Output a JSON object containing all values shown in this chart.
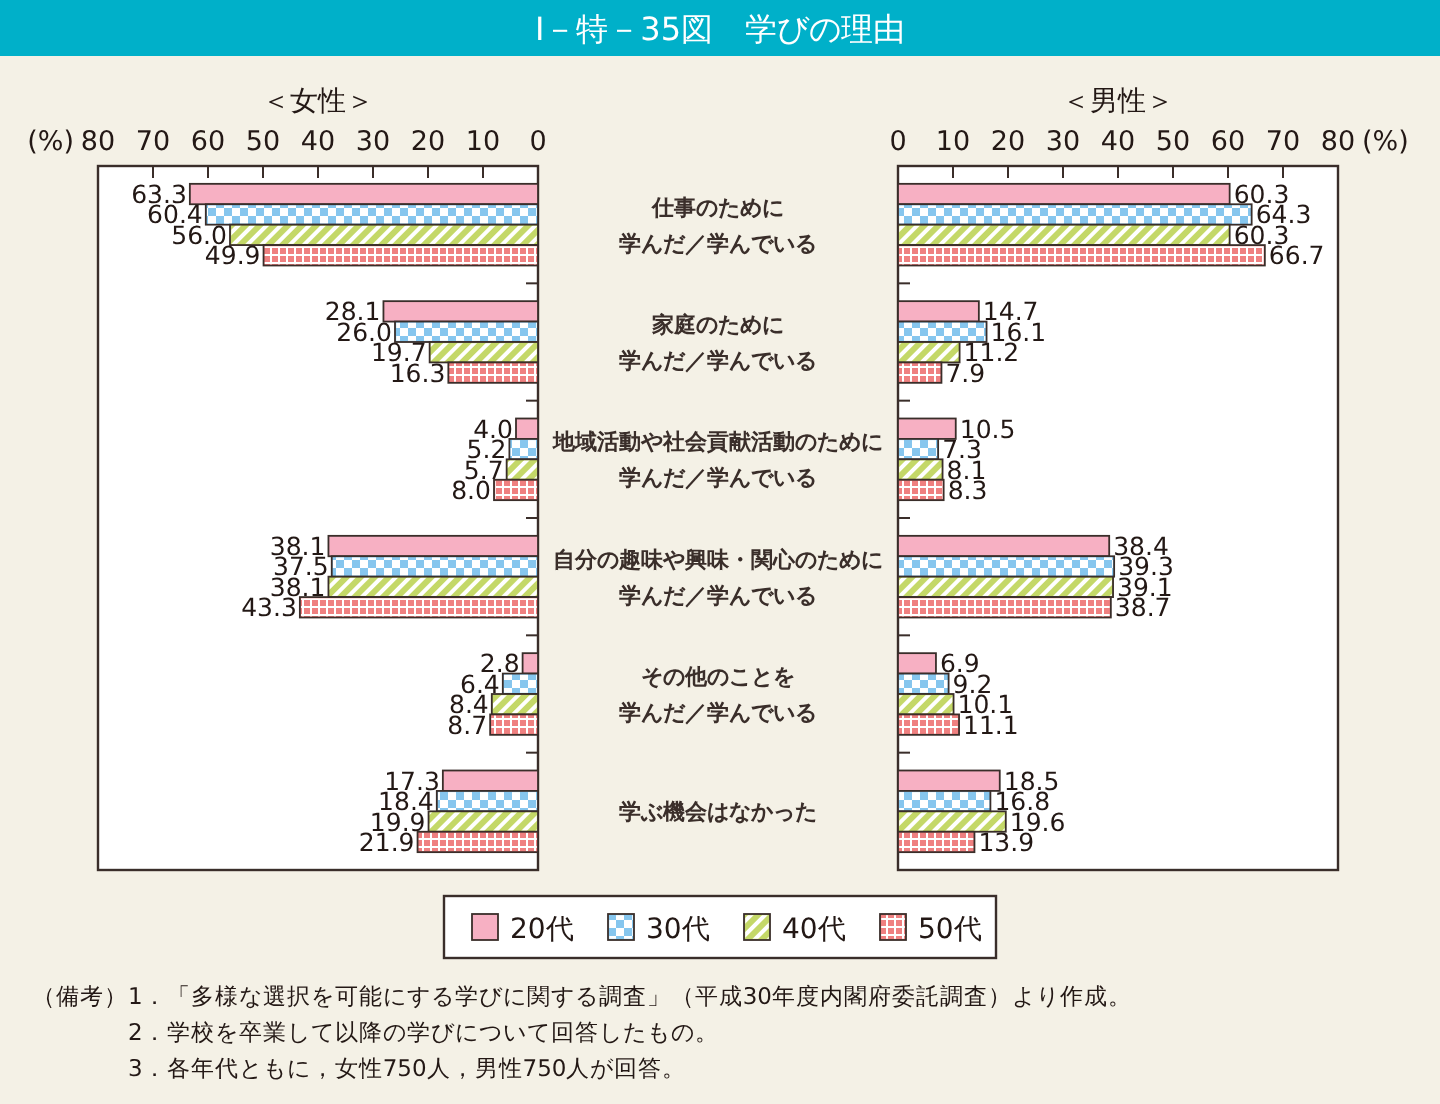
{
  "chart_data": [
    {
      "type": "bar",
      "orientation": "horizontal",
      "title": "Ⅰ－特－35図　学びの理由",
      "subtitle": "＜女性＞",
      "xlabel": "(%)",
      "categories": [
        "仕事のために学んだ／学んでいる",
        "家庭のために学んだ／学んでいる",
        "地域活動や社会貢献活動のために学んだ／学んでいる",
        "自分の趣味や興味・関心のために学んだ／学んでいる",
        "その他のことを学んだ／学んでいる",
        "学ぶ機会はなかった"
      ],
      "series": [
        {
          "name": "20代",
          "color": "#f7b0c3",
          "values": [
            63.3,
            28.1,
            4.0,
            38.1,
            2.8,
            17.3
          ],
          "value_labels": [
            "63.3",
            "28.1",
            "4.0",
            "38.1",
            "2.8",
            "17.3"
          ]
        },
        {
          "name": "30代",
          "color": "#86c6ee",
          "values": [
            60.4,
            26.0,
            5.2,
            37.5,
            6.4,
            18.4
          ],
          "value_labels": [
            "60.4",
            "26.0",
            "5.2",
            "37.5",
            "6.4",
            "18.4"
          ]
        },
        {
          "name": "40代",
          "color": "#c4d868",
          "values": [
            56.0,
            19.7,
            5.7,
            38.1,
            8.4,
            19.9
          ],
          "value_labels": [
            "56.0",
            "19.7",
            "5.7",
            "38.1",
            "8.4",
            "19.9"
          ]
        },
        {
          "name": "50代",
          "color": "#ef8080",
          "values": [
            49.9,
            16.3,
            8.0,
            43.3,
            8.7,
            21.9
          ],
          "value_labels": [
            "49.9",
            "16.3",
            "8.0",
            "43.3",
            "8.7",
            "21.9"
          ]
        }
      ],
      "xlim": [
        80,
        0
      ],
      "xticks": [
        80,
        70,
        60,
        50,
        40,
        30,
        20,
        10,
        0
      ],
      "legend": "bottom",
      "annotations": [
        "（備考）",
        "1．「多様な選択を可能にする学びに関する調査」（平成30年度内閣府委託調査）より作成。",
        "2．学校を卒業して以降の学びについて回答したもの。",
        "3．各年代ともに，女性750人，男性750人が回答。"
      ]
    },
    {
      "type": "bar",
      "orientation": "horizontal",
      "subtitle": "＜男性＞",
      "xlabel": "(%)",
      "categories": [
        "仕事のために学んだ／学んでいる",
        "家庭のために学んだ／学んでいる",
        "地域活動や社会貢献活動のために学んだ／学んでいる",
        "自分の趣味や興味・関心のために学んだ／学んでいる",
        "その他のことを学んだ／学んでいる",
        "学ぶ機会はなかった"
      ],
      "series": [
        {
          "name": "20代",
          "color": "#f7b0c3",
          "values": [
            60.3,
            14.7,
            10.5,
            38.4,
            6.9,
            18.5
          ],
          "value_labels": [
            "60.3",
            "14.7",
            "10.5",
            "38.4",
            "6.9",
            "18.5"
          ]
        },
        {
          "name": "30代",
          "color": "#86c6ee",
          "values": [
            64.3,
            16.1,
            7.3,
            39.3,
            9.2,
            16.8
          ],
          "value_labels": [
            "64.3",
            "16.1",
            "7.3",
            "39.3",
            "9.2",
            "16.8"
          ]
        },
        {
          "name": "40代",
          "color": "#c4d868",
          "values": [
            60.3,
            11.2,
            8.1,
            39.1,
            10.1,
            19.6
          ],
          "value_labels": [
            "60.3",
            "11.2",
            "8.1",
            "39.1",
            "10.1",
            "19.6"
          ]
        },
        {
          "name": "50代",
          "color": "#ef8080",
          "values": [
            66.7,
            7.9,
            8.3,
            38.7,
            11.1,
            13.9
          ],
          "value_labels": [
            "66.7",
            "7.9",
            "8.3",
            "38.7",
            "11.1",
            "13.9"
          ]
        }
      ],
      "xlim": [
        0,
        80
      ],
      "xticks": [
        0,
        10,
        20,
        30,
        40,
        50,
        60,
        70,
        80
      ],
      "tick_labels": "x"
    }
  ]
}
